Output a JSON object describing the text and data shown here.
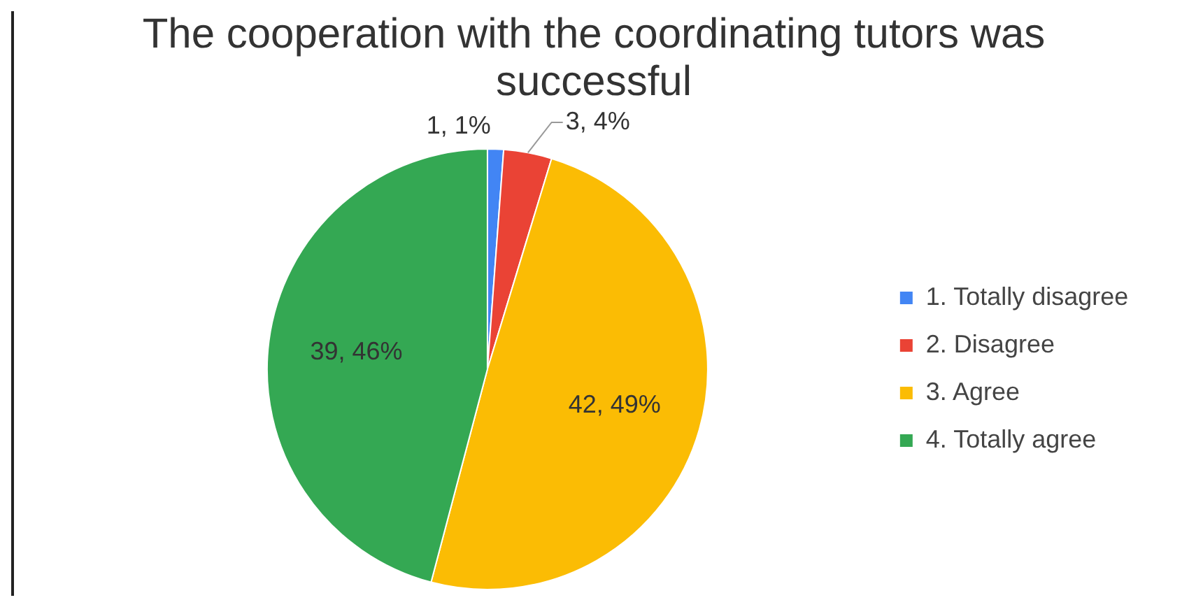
{
  "chart_data": {
    "type": "pie",
    "title": "The cooperation with the coordinating tutors was successful",
    "categories": [
      "1. Totally disagree",
      "2. Disagree",
      "3. Agree",
      "4. Totally agree"
    ],
    "values": [
      1,
      3,
      42,
      39
    ],
    "colors": [
      "#4285f4",
      "#ea4335",
      "#fbbc04",
      "#34a853"
    ],
    "value_labels": [
      "1, 1%",
      "3, 4%",
      "42, 49%",
      "39, 46%"
    ],
    "legend": "right"
  }
}
